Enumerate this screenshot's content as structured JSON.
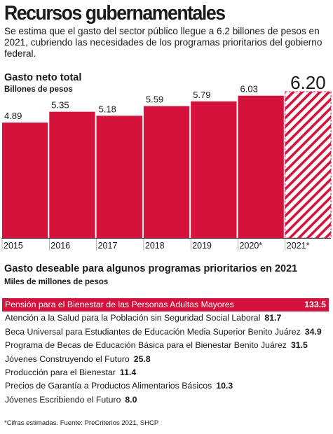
{
  "header": {
    "title": "Recursos gubernamentales",
    "subtitle": "Se estima que el gasto del sector público llegue a 6.2 billones de pesos en 2021, cubriendo las necesidades de los programas prioritarios del gobierno federal."
  },
  "section1": {
    "title": "Gasto neto total",
    "unit": "Billones de pesos"
  },
  "section2": {
    "title": "Gasto deseable para algunos programas prioritarios en 2021",
    "unit": "Miles de millones de pesos"
  },
  "source": "*Cifras estimadas. Fuente: PreCriterios 2021, SHCP",
  "colors": {
    "accent": "#d4123b",
    "text": "#1a1a1a",
    "baseline": "#444444"
  },
  "chart_data": [
    {
      "type": "bar",
      "title": "Gasto neto total",
      "ylabel": "Billones de pesos",
      "categories": [
        "2015",
        "2016",
        "2017",
        "2018",
        "2019",
        "2020*",
        "2021*"
      ],
      "values": [
        4.89,
        5.35,
        5.18,
        5.59,
        5.79,
        6.03,
        6.2
      ],
      "value_labels": [
        "4.89",
        "5.35",
        "5.18",
        "5.59",
        "5.79",
        "6.03",
        "6.20"
      ],
      "estimated": [
        false,
        false,
        false,
        false,
        false,
        true,
        true
      ],
      "ylim": [
        0,
        6.2
      ],
      "grid": false
    },
    {
      "type": "table",
      "title": "Gasto deseable para algunos programas prioritarios en 2021",
      "unit": "Miles de millones de pesos",
      "rows": [
        {
          "label": "Pensión para el Bienestar de las Personas Adultas Mayores",
          "value": "133.5",
          "highlight": true
        },
        {
          "label": "Atención a la Salud para la Población sin Seguridad Social Laboral",
          "value": "81.7",
          "highlight": false
        },
        {
          "label": "Beca Universal para Estudiantes de Educación Media Superior Benito Juárez",
          "value": "34.9",
          "highlight": false
        },
        {
          "label": "Programa de Becas de Educación Básica para el Bienestar Benito Juárez",
          "value": "31.5",
          "highlight": false
        },
        {
          "label": "Jóvenes Construyendo el Futuro",
          "value": "25.8",
          "highlight": false
        },
        {
          "label": "Producción para el Bienestar",
          "value": "11.4",
          "highlight": false
        },
        {
          "label": "Precios de Garantía a Productos Alimentarios Básicos",
          "value": "10.3",
          "highlight": false
        },
        {
          "label": "Jóvenes Escribiendo el Futuro",
          "value": "8.0",
          "highlight": false
        }
      ]
    }
  ]
}
